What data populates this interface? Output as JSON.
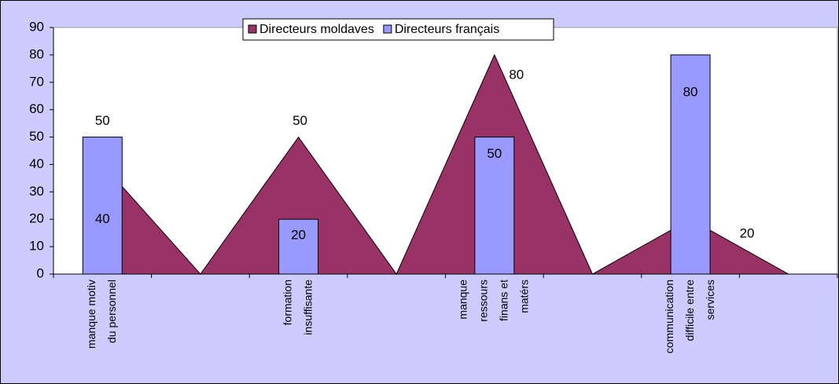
{
  "chart_data": {
    "type": "area-bar",
    "categories": [
      [
        "manque motiv",
        "du personnel"
      ],
      null,
      [
        "formation",
        "insuffisante"
      ],
      null,
      [
        "manque",
        "ressours",
        "finans et",
        "matérs"
      ],
      null,
      [
        "communication",
        "difficile entre",
        "services"
      ],
      null
    ],
    "series": [
      {
        "name": "Directeurs moldaves",
        "type": "area",
        "color": "#993366",
        "values": [
          40,
          0,
          50,
          0,
          80,
          0,
          20,
          0
        ]
      },
      {
        "name": "Directeurs français",
        "type": "bar",
        "color": "#9999ff",
        "values": [
          50,
          null,
          20,
          null,
          50,
          null,
          80,
          null
        ]
      }
    ],
    "ylim": [
      0,
      90
    ],
    "yticks": [
      0,
      10,
      20,
      30,
      40,
      50,
      60,
      70,
      80,
      90
    ],
    "legend": "top"
  }
}
